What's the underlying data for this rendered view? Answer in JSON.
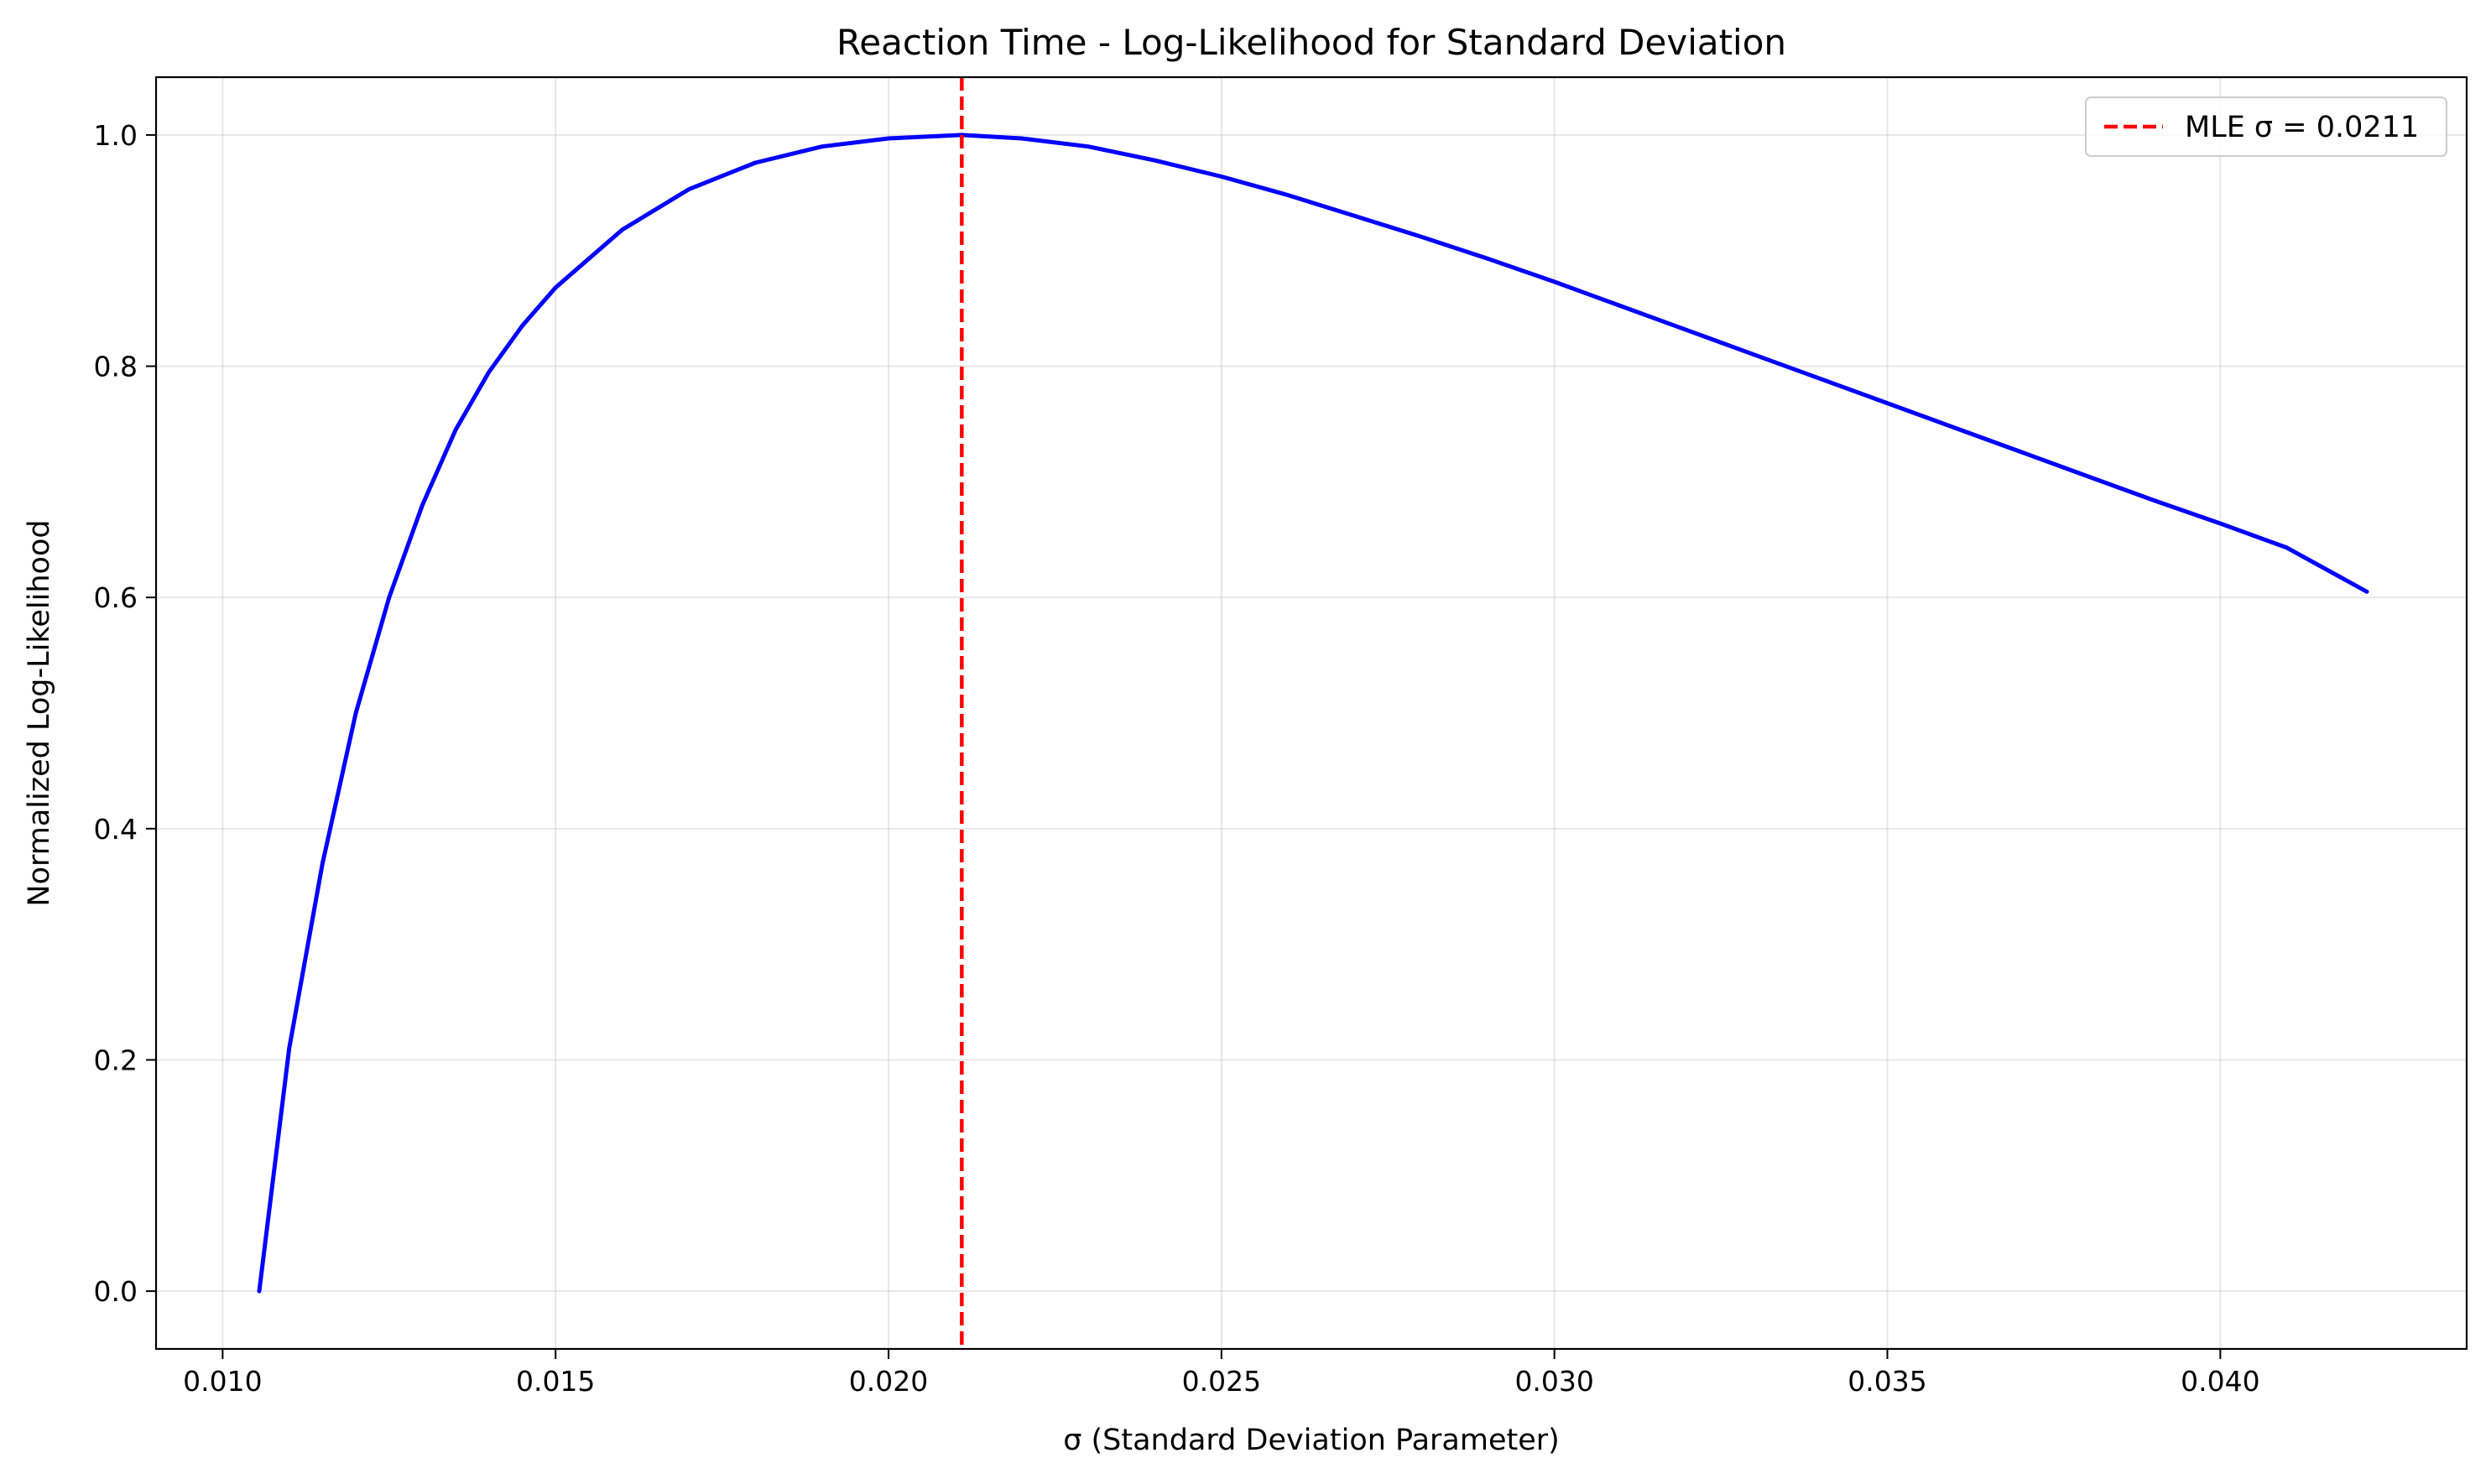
{
  "chart_data": {
    "type": "line",
    "title": "Reaction Time - Log-Likelihood for Standard Deviation",
    "xlabel": "σ (Standard Deviation Parameter)",
    "ylabel": "Normalized Log-Likelihood",
    "xlim": [
      0.009,
      0.0437
    ],
    "ylim": [
      -0.05,
      1.05
    ],
    "xticks": [
      0.01,
      0.015,
      0.02,
      0.025,
      0.03,
      0.035,
      0.04
    ],
    "xtick_labels": [
      "0.010",
      "0.015",
      "0.020",
      "0.025",
      "0.030",
      "0.035",
      "0.040"
    ],
    "yticks": [
      0.0,
      0.2,
      0.4,
      0.6,
      0.8,
      1.0
    ],
    "ytick_labels": [
      "0.0",
      "0.2",
      "0.4",
      "0.6",
      "0.8",
      "1.0"
    ],
    "grid": true,
    "legend_position": "top-right",
    "series": [
      {
        "color": "#0000ff",
        "style": "solid",
        "x": [
          0.01055,
          0.011,
          0.0115,
          0.012,
          0.0125,
          0.013,
          0.0135,
          0.014,
          0.0145,
          0.015,
          0.016,
          0.017,
          0.018,
          0.019,
          0.02,
          0.0211,
          0.022,
          0.023,
          0.024,
          0.025,
          0.026,
          0.027,
          0.028,
          0.029,
          0.03,
          0.031,
          0.032,
          0.033,
          0.034,
          0.035,
          0.036,
          0.037,
          0.038,
          0.039,
          0.04,
          0.041,
          0.0422
        ],
        "values": [
          0.0,
          0.21,
          0.37,
          0.5,
          0.6,
          0.68,
          0.745,
          0.795,
          0.835,
          0.868,
          0.918,
          0.953,
          0.976,
          0.99,
          0.997,
          1.0,
          0.997,
          0.99,
          0.978,
          0.964,
          0.948,
          0.93,
          0.912,
          0.893,
          0.873,
          0.852,
          0.831,
          0.81,
          0.789,
          0.768,
          0.747,
          0.726,
          0.705,
          0.684,
          0.664,
          0.643,
          0.605
        ]
      }
    ],
    "reference_lines": [
      {
        "orientation": "vertical",
        "x": 0.0211,
        "color": "#ff0000",
        "style": "dashed",
        "label": "MLE σ = 0.0211"
      }
    ]
  }
}
